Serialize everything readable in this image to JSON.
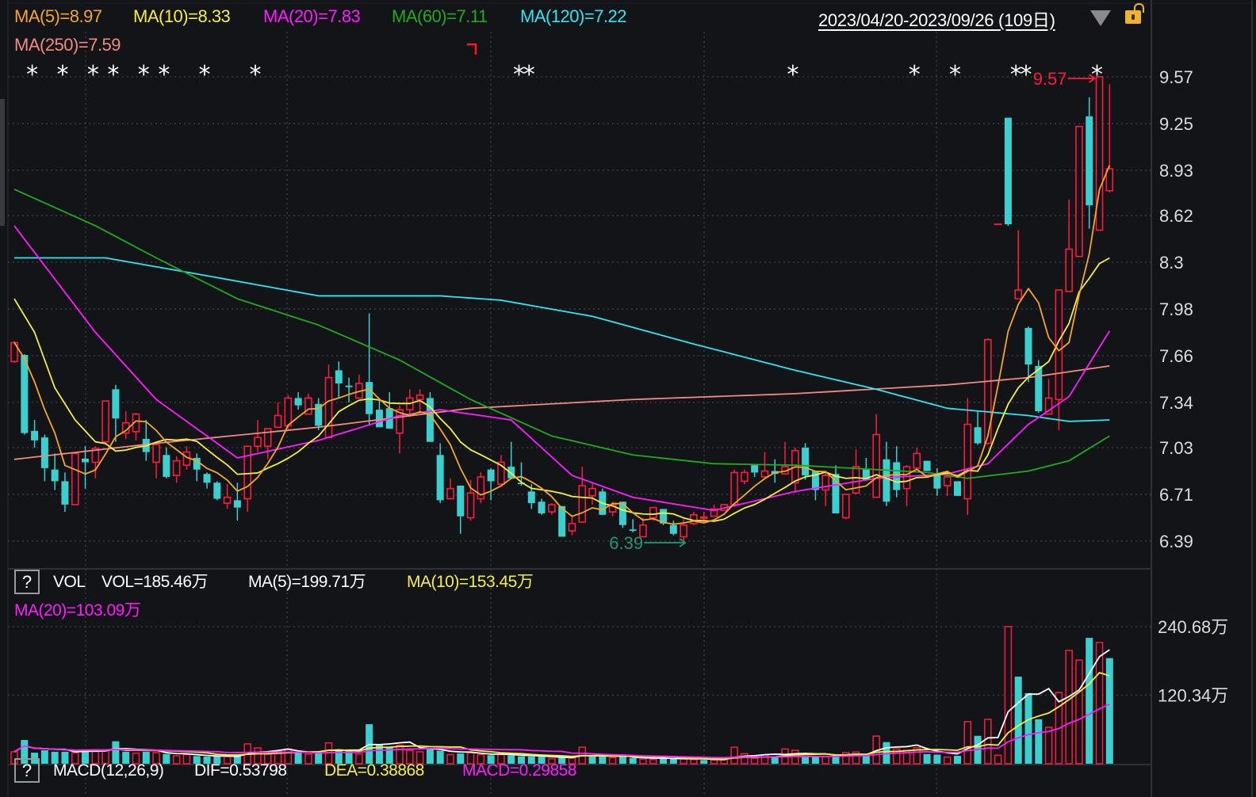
{
  "header": {
    "ma_legend": [
      {
        "text": "MA(5)=8.97",
        "color": "#f5a623"
      },
      {
        "text": "MA(10)=8.33",
        "color": "#f5ef3a"
      },
      {
        "text": "MA(20)=7.83",
        "color": "#ff1cff"
      },
      {
        "text": "MA(60)=7.11",
        "color": "#1faa1f"
      },
      {
        "text": "MA(120)=7.22",
        "color": "#2ce6f2"
      },
      {
        "text": "MA(250)=7.59",
        "color": "#f08a80"
      }
    ],
    "date_range": "2023/04/20-2023/09/26 (109日)",
    "dropdown_icon": "triangle-down-icon",
    "lock_icon": "unlock-icon"
  },
  "volume_panel": {
    "help": "?",
    "name": "VOL",
    "vol_text": "VOL=185.46万",
    "ma5_text": "MA(5)=199.71万",
    "ma10_text": "MA(10)=153.45万",
    "ma20_text": "MA(20)=103.09万",
    "colors": {
      "ma5": "#ffffff",
      "ma10": "#f5ef3a",
      "ma20": "#ff1cff"
    }
  },
  "macd_panel": {
    "help": "?",
    "name": "MACD(12,26,9)",
    "dif_text": "DIF=0.53798",
    "dea_text": "DEA=0.38868",
    "macd_text": "MACD=0.29858"
  },
  "chart_data": {
    "type": "candlestick",
    "title": "",
    "date_range": [
      "2023/04/20",
      "2023/09/26"
    ],
    "days": 109,
    "colors": {
      "up": "#ff1a3c",
      "down": "#3ccfcf",
      "bg": "#131418"
    },
    "ylim": [
      6.39,
      9.57
    ],
    "y_ticks": [
      "9.57",
      "9.25",
      "8.93",
      "8.62",
      "8.3",
      "7.98",
      "7.66",
      "7.34",
      "7.03",
      "6.71",
      "6.39"
    ],
    "volume_ticks": [
      "240.68万",
      "120.34万"
    ],
    "volume_tick_values": [
      240.68,
      120.34
    ],
    "high_marker": {
      "text": "9.57",
      "index": 107,
      "value": 9.57
    },
    "low_marker": {
      "text": "6.39",
      "index": 66,
      "value": 6.39
    },
    "star_marker": "*",
    "star_indices": [
      2,
      5,
      8,
      10,
      13,
      15,
      19,
      24,
      50,
      51,
      77,
      89,
      93,
      99,
      100,
      107
    ],
    "ohlc_columns": [
      "open",
      "high",
      "low",
      "close"
    ],
    "ohlc": [
      [
        7.62,
        7.76,
        7.61,
        7.75
      ],
      [
        7.665,
        7.67,
        7.12,
        7.13
      ],
      [
        7.145,
        7.22,
        7.03,
        7.08
      ],
      [
        7.1,
        7.12,
        6.8,
        6.89
      ],
      [
        6.88,
        6.99,
        6.74,
        6.8
      ],
      [
        6.8,
        6.86,
        6.59,
        6.64
      ],
      [
        6.64,
        7.0,
        6.64,
        6.99
      ],
      [
        6.955,
        7.04,
        6.75,
        6.93
      ],
      [
        6.93,
        7.04,
        6.82,
        7.025
      ],
      [
        7.07,
        7.35,
        7.05,
        7.35
      ],
      [
        7.43,
        7.46,
        7.07,
        7.23
      ],
      [
        7.13,
        7.28,
        7.09,
        7.2
      ],
      [
        7.14,
        7.27,
        7.08,
        7.26
      ],
      [
        7.09,
        7.22,
        6.94,
        7.0
      ],
      [
        6.93,
        7.05,
        6.82,
        7.05
      ],
      [
        6.98,
        7.03,
        6.82,
        6.83
      ],
      [
        6.84,
        6.97,
        6.79,
        6.94
      ],
      [
        6.91,
        7.04,
        6.88,
        7.0
      ],
      [
        6.96,
        6.99,
        6.8,
        6.88
      ],
      [
        6.85,
        6.86,
        6.75,
        6.79
      ],
      [
        6.79,
        6.8,
        6.67,
        6.68
      ],
      [
        6.65,
        6.78,
        6.61,
        6.69
      ],
      [
        6.67,
        6.79,
        6.53,
        6.62
      ],
      [
        6.68,
        7.04,
        6.59,
        7.04
      ],
      [
        7.04,
        7.22,
        7.0,
        7.1
      ],
      [
        7.04,
        7.16,
        6.95,
        7.16
      ],
      [
        7.17,
        7.34,
        7.17,
        7.25
      ],
      [
        7.18,
        7.39,
        7.16,
        7.37
      ],
      [
        7.37,
        7.41,
        7.29,
        7.32
      ],
      [
        7.26,
        7.4,
        7.26,
        7.37
      ],
      [
        7.33,
        7.37,
        7.15,
        7.18
      ],
      [
        7.1,
        7.6,
        7.1,
        7.51
      ],
      [
        7.56,
        7.62,
        7.37,
        7.47
      ],
      [
        7.455,
        7.51,
        7.34,
        7.445
      ],
      [
        7.37,
        7.53,
        7.37,
        7.47
      ],
      [
        7.48,
        7.95,
        7.19,
        7.26
      ],
      [
        7.29,
        7.37,
        7.17,
        7.17
      ],
      [
        7.3,
        7.41,
        7.16,
        7.16
      ],
      [
        7.13,
        7.32,
        6.99,
        7.29
      ],
      [
        7.29,
        7.43,
        7.24,
        7.37
      ],
      [
        7.36,
        7.43,
        7.28,
        7.39
      ],
      [
        7.37,
        7.41,
        7.07,
        7.07
      ],
      [
        6.98,
        7.06,
        6.65,
        6.67
      ],
      [
        6.68,
        6.82,
        6.68,
        6.75
      ],
      [
        6.77,
        6.77,
        6.44,
        6.56
      ],
      [
        6.55,
        6.81,
        6.53,
        6.72
      ],
      [
        6.68,
        6.86,
        6.65,
        6.83
      ],
      [
        6.88,
        6.89,
        6.67,
        6.8
      ],
      [
        6.78,
        6.98,
        6.78,
        6.93
      ],
      [
        6.9,
        7.07,
        6.82,
        6.82
      ],
      [
        6.79,
        6.93,
        6.77,
        6.78
      ],
      [
        6.73,
        6.78,
        6.61,
        6.65
      ],
      [
        6.66,
        6.68,
        6.57,
        6.58
      ],
      [
        6.59,
        6.65,
        6.57,
        6.64
      ],
      [
        6.63,
        6.63,
        6.42,
        6.42
      ],
      [
        6.46,
        6.56,
        6.43,
        6.51
      ],
      [
        6.52,
        6.9,
        6.52,
        6.77
      ],
      [
        6.7,
        6.79,
        6.64,
        6.75
      ],
      [
        6.73,
        6.75,
        6.57,
        6.57
      ],
      [
        6.59,
        6.66,
        6.56,
        6.64
      ],
      [
        6.66,
        6.66,
        6.48,
        6.5
      ],
      [
        6.47,
        6.54,
        6.45,
        6.46
      ],
      [
        6.42,
        6.55,
        6.42,
        6.5
      ],
      [
        6.55,
        6.62,
        6.53,
        6.62
      ],
      [
        6.61,
        6.61,
        6.5,
        6.51
      ],
      [
        6.5,
        6.53,
        6.43,
        6.44
      ],
      [
        6.42,
        6.54,
        6.39,
        6.5
      ],
      [
        6.51,
        6.59,
        6.5,
        6.57
      ],
      [
        6.555,
        6.59,
        6.52,
        6.555
      ],
      [
        6.56,
        6.64,
        6.56,
        6.61
      ],
      [
        6.6,
        6.64,
        6.6,
        6.64
      ],
      [
        6.64,
        6.88,
        6.64,
        6.86
      ],
      [
        6.8,
        6.88,
        6.78,
        6.86
      ],
      [
        6.91,
        6.91,
        6.83,
        6.86
      ],
      [
        6.83,
        7.0,
        6.83,
        6.87
      ],
      [
        6.87,
        6.95,
        6.79,
        6.85
      ],
      [
        6.85,
        7.07,
        6.85,
        6.9
      ],
      [
        6.79,
        7.03,
        6.72,
        7.01
      ],
      [
        7.03,
        7.06,
        6.81,
        6.84
      ],
      [
        6.87,
        6.87,
        6.67,
        6.74
      ],
      [
        6.74,
        6.86,
        6.63,
        6.84
      ],
      [
        6.85,
        6.91,
        6.58,
        6.58
      ],
      [
        6.55,
        6.71,
        6.54,
        6.71
      ],
      [
        6.72,
        7.02,
        6.71,
        6.9
      ],
      [
        6.88,
        6.96,
        6.81,
        6.81
      ],
      [
        6.69,
        7.26,
        6.69,
        7.12
      ],
      [
        6.95,
        7.07,
        6.63,
        6.66
      ],
      [
        6.93,
        7.04,
        6.69,
        6.74
      ],
      [
        6.75,
        6.91,
        6.63,
        6.9
      ],
      [
        6.89,
        7.03,
        6.89,
        6.99
      ],
      [
        6.94,
        6.94,
        6.87,
        6.87
      ],
      [
        6.85,
        6.89,
        6.7,
        6.75
      ],
      [
        6.77,
        6.85,
        6.7,
        6.83
      ],
      [
        6.8,
        6.8,
        6.7,
        6.7
      ],
      [
        6.68,
        7.37,
        6.57,
        7.19
      ],
      [
        7.17,
        7.28,
        7.05,
        7.06
      ],
      [
        7.06,
        7.78,
        7.05,
        7.77
      ],
      [
        8.56,
        8.56,
        8.56,
        8.56
      ],
      [
        9.29,
        9.29,
        8.55,
        8.56
      ],
      [
        8.05,
        8.52,
        8.05,
        8.11
      ],
      [
        7.85,
        7.86,
        7.48,
        7.6
      ],
      [
        7.59,
        7.63,
        7.27,
        7.28
      ],
      [
        7.26,
        7.5,
        7.26,
        7.37
      ],
      [
        7.36,
        8.11,
        7.15,
        8.11
      ],
      [
        8.1,
        8.73,
        8.1,
        8.39
      ],
      [
        8.34,
        9.23,
        8.34,
        9.23
      ],
      [
        9.3,
        9.43,
        8.53,
        8.69
      ],
      [
        8.52,
        9.57,
        8.52,
        9.57
      ],
      [
        8.79,
        9.52,
        8.78,
        8.94
      ]
    ],
    "volume_unit": "万",
    "volume": [
      21,
      41.7,
      19.4,
      23.6,
      21,
      21,
      19.4,
      24,
      24.5,
      23.6,
      39.4,
      21,
      18.5,
      21,
      19.4,
      17,
      13.9,
      16,
      13.4,
      12.5,
      12.5,
      12.5,
      14,
      34.7,
      27.8,
      17,
      22.7,
      26,
      19.4,
      17,
      19.4,
      36.6,
      24,
      22.7,
      17,
      69.4,
      34.7,
      30,
      32.4,
      23.6,
      21,
      26,
      22.7,
      16,
      18,
      19.4,
      16,
      14.8,
      16,
      14.8,
      13,
      12.5,
      12.5,
      8.8,
      11,
      9.7,
      29,
      12.5,
      12.5,
      10.6,
      12.5,
      9.7,
      8.3,
      7.4,
      11,
      9.7,
      8.3,
      7.4,
      6.5,
      6.5,
      7.4,
      29,
      17.6,
      9.7,
      15.7,
      12.5,
      25.9,
      23.6,
      12.5,
      12.5,
      12.5,
      12.5,
      19.4,
      20.4,
      13.9,
      48.6,
      38,
      25.9,
      23.6,
      28,
      17,
      16,
      11.6,
      14,
      74,
      49,
      78,
      15,
      240.7,
      153,
      124,
      78,
      64,
      125,
      199,
      182,
      221,
      213,
      185.46
    ],
    "ma_head": {
      "ma5": [
        [
          0,
          7.75
        ],
        [
          1,
          7.64
        ],
        [
          2,
          7.48
        ],
        [
          3,
          7.29
        ]
      ],
      "ma10": [
        [
          0,
          8.05
        ],
        [
          2,
          7.82
        ],
        [
          4,
          7.44
        ],
        [
          6,
          7.22
        ],
        [
          8,
          7.07
        ]
      ]
    },
    "ma_series": {
      "ma20": [
        [
          0,
          8.55
        ],
        [
          8,
          7.82
        ],
        [
          14,
          7.36
        ],
        [
          22,
          6.96
        ],
        [
          30,
          7.08
        ],
        [
          38,
          7.25
        ],
        [
          42,
          7.29
        ],
        [
          49,
          7.22
        ],
        [
          55,
          6.84
        ],
        [
          61,
          6.69
        ],
        [
          69,
          6.6
        ],
        [
          77,
          6.73
        ],
        [
          85,
          6.82
        ],
        [
          92,
          6.85
        ],
        [
          96,
          6.92
        ],
        [
          100,
          7.19
        ],
        [
          104,
          7.38
        ],
        [
          108,
          7.83
        ]
      ],
      "ma60": [
        [
          0,
          8.8
        ],
        [
          8,
          8.55
        ],
        [
          14,
          8.33
        ],
        [
          22,
          8.05
        ],
        [
          30,
          7.87
        ],
        [
          38,
          7.63
        ],
        [
          45,
          7.36
        ],
        [
          53,
          7.11
        ],
        [
          61,
          6.98
        ],
        [
          69,
          6.92
        ],
        [
          77,
          6.91
        ],
        [
          85,
          6.88
        ],
        [
          90,
          6.86
        ],
        [
          94,
          6.82
        ],
        [
          100,
          6.87
        ],
        [
          104,
          6.94
        ],
        [
          108,
          7.11
        ]
      ],
      "ma120": [
        [
          0,
          8.33
        ],
        [
          9,
          8.33
        ],
        [
          18,
          8.22
        ],
        [
          30,
          8.07
        ],
        [
          42,
          8.07
        ],
        [
          48,
          8.04
        ],
        [
          57,
          7.93
        ],
        [
          67,
          7.74
        ],
        [
          77,
          7.56
        ],
        [
          85,
          7.43
        ],
        [
          92,
          7.3
        ],
        [
          100,
          7.25
        ],
        [
          104,
          7.21
        ],
        [
          108,
          7.22
        ]
      ],
      "ma250": [
        [
          0,
          6.95
        ],
        [
          14,
          7.06
        ],
        [
          30,
          7.17
        ],
        [
          45,
          7.3
        ],
        [
          61,
          7.36
        ],
        [
          77,
          7.4
        ],
        [
          92,
          7.46
        ],
        [
          100,
          7.51
        ],
        [
          108,
          7.59
        ]
      ]
    }
  }
}
